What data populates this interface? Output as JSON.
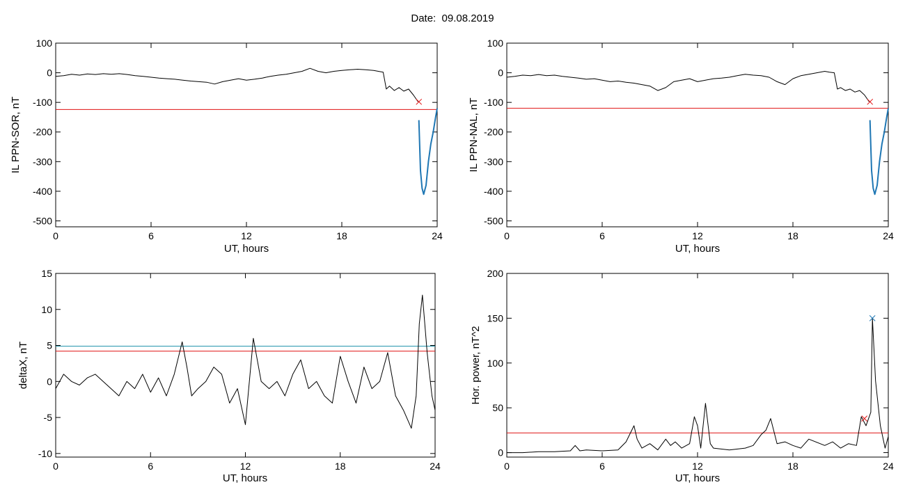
{
  "figure_title": "Date:  09.08.2019",
  "colors": {
    "trace": "#000000",
    "red_line": "#e01010",
    "blue_line": "#1f77b4",
    "cyan_line": "#1a8fa8"
  },
  "chart_data": [
    {
      "id": "sor",
      "type": "line",
      "title": "",
      "xlabel": "UT, hours",
      "ylabel": "IL PPN-SOR, nT",
      "xlim": [
        0,
        24
      ],
      "ylim": [
        -520,
        100
      ],
      "xticks": [
        "0",
        "6",
        "12",
        "18",
        "24"
      ],
      "yticks": [
        "100",
        "0",
        "-100",
        "-200",
        "-300",
        "-400",
        "-500"
      ],
      "hlines": [
        {
          "y": -124,
          "color": "red"
        }
      ],
      "markers": [
        {
          "x": 22.85,
          "y": -98,
          "symbol": "x",
          "color": "red"
        }
      ],
      "series": [
        {
          "color": "black",
          "x": [
            0,
            0.5,
            1,
            1.5,
            2,
            2.5,
            3,
            3.5,
            4,
            4.5,
            5,
            5.5,
            6,
            6.5,
            7,
            7.5,
            8,
            8.5,
            9,
            9.5,
            10,
            10.5,
            11,
            11.5,
            12,
            12.5,
            13,
            13.5,
            14,
            14.5,
            15,
            15.5,
            16,
            16.5,
            17,
            17.5,
            18,
            18.5,
            19,
            19.5,
            20,
            20.3,
            20.6,
            20.8,
            21,
            21.3,
            21.6,
            21.9,
            22.2,
            22.5,
            22.8
          ],
          "y": [
            -12,
            -10,
            -5,
            -8,
            -4,
            -6,
            -3,
            -5,
            -3,
            -6,
            -10,
            -12,
            -15,
            -18,
            -20,
            -22,
            -25,
            -28,
            -30,
            -32,
            -38,
            -30,
            -25,
            -20,
            -25,
            -22,
            -18,
            -12,
            -8,
            -5,
            0,
            5,
            15,
            5,
            0,
            5,
            8,
            10,
            12,
            10,
            8,
            5,
            2,
            -55,
            -45,
            -60,
            -50,
            -62,
            -55,
            -75,
            -98
          ]
        },
        {
          "color": "blue",
          "x": [
            22.85,
            22.95,
            23.05,
            23.15,
            23.3,
            23.45,
            23.6,
            23.75,
            23.9,
            24.0
          ],
          "y": [
            -160,
            -330,
            -390,
            -410,
            -380,
            -300,
            -240,
            -200,
            -150,
            -120
          ]
        }
      ]
    },
    {
      "id": "nal",
      "type": "line",
      "title": "",
      "xlabel": "UT, hours",
      "ylabel": "IL PPN-NAL, nT",
      "xlim": [
        0,
        24
      ],
      "ylim": [
        -520,
        100
      ],
      "xticks": [
        "0",
        "6",
        "12",
        "18",
        "24"
      ],
      "yticks": [
        "100",
        "0",
        "-100",
        "-200",
        "-300",
        "-400",
        "-500"
      ],
      "hlines": [
        {
          "y": -120,
          "color": "red"
        }
      ],
      "markers": [
        {
          "x": 22.85,
          "y": -98,
          "symbol": "x",
          "color": "red"
        }
      ],
      "series": [
        {
          "color": "black",
          "x": [
            0,
            0.5,
            1,
            1.5,
            2,
            2.5,
            3,
            3.5,
            4,
            4.5,
            5,
            5.5,
            6,
            6.5,
            7,
            7.5,
            8,
            8.5,
            9,
            9.5,
            10,
            10.5,
            11,
            11.5,
            12,
            12.5,
            13,
            13.5,
            14,
            14.5,
            15,
            15.5,
            16,
            16.5,
            17,
            17.5,
            18,
            18.5,
            19,
            19.5,
            20,
            20.3,
            20.6,
            20.8,
            21,
            21.3,
            21.6,
            21.9,
            22.2,
            22.5,
            22.8
          ],
          "y": [
            -15,
            -12,
            -8,
            -10,
            -6,
            -10,
            -8,
            -12,
            -15,
            -18,
            -22,
            -20,
            -25,
            -30,
            -28,
            -32,
            -35,
            -40,
            -45,
            -60,
            -50,
            -30,
            -25,
            -20,
            -30,
            -25,
            -20,
            -18,
            -15,
            -10,
            -5,
            -8,
            -10,
            -15,
            -30,
            -40,
            -20,
            -10,
            -5,
            0,
            5,
            2,
            0,
            -55,
            -50,
            -60,
            -55,
            -65,
            -60,
            -75,
            -98
          ]
        },
        {
          "color": "blue",
          "x": [
            22.85,
            22.95,
            23.05,
            23.15,
            23.3,
            23.45,
            23.6,
            23.75,
            23.9,
            24.0
          ],
          "y": [
            -160,
            -330,
            -390,
            -410,
            -380,
            -300,
            -240,
            -200,
            -150,
            -120
          ]
        }
      ]
    },
    {
      "id": "deltax",
      "type": "line",
      "title": "",
      "xlabel": "UT, hours",
      "ylabel": "deltaX, nT",
      "xlim": [
        0,
        24
      ],
      "ylim": [
        -10.5,
        15
      ],
      "xticks": [
        "0",
        "6",
        "12",
        "18",
        "24"
      ],
      "yticks": [
        "15",
        "10",
        "5",
        "0",
        "-5",
        "-10"
      ],
      "hlines": [
        {
          "y": 4.9,
          "color": "cyan"
        },
        {
          "y": 4.2,
          "color": "red"
        }
      ],
      "markers": [],
      "series": [
        {
          "color": "black",
          "x": [
            0,
            0.5,
            1,
            1.5,
            2,
            2.5,
            3,
            3.5,
            4,
            4.5,
            5,
            5.5,
            6,
            6.5,
            7,
            7.5,
            8,
            8.3,
            8.6,
            9,
            9.5,
            10,
            10.5,
            11,
            11.5,
            12,
            12.5,
            13,
            13.5,
            14,
            14.5,
            15,
            15.5,
            16,
            16.5,
            17,
            17.5,
            18,
            18.5,
            19,
            19.5,
            20,
            20.5,
            21,
            21.5,
            22,
            22.5,
            22.8,
            23.0,
            23.2,
            23.5,
            23.8,
            24.0
          ],
          "y": [
            -1,
            1,
            0,
            -0.5,
            0.5,
            1,
            0,
            -1,
            -2,
            0,
            -1,
            1,
            -1.5,
            0.5,
            -2,
            1,
            5.5,
            2,
            -2,
            -1,
            0,
            2,
            1,
            -3,
            -1,
            -6,
            6,
            0,
            -1,
            0,
            -2,
            1,
            3,
            -1,
            0,
            -2,
            -3,
            3.5,
            0,
            -3,
            2,
            -1,
            0,
            4,
            -2,
            -4,
            -6.5,
            -2,
            8,
            12,
            4,
            -2,
            -4
          ]
        }
      ]
    },
    {
      "id": "horpower",
      "type": "line",
      "title": "",
      "xlabel": "UT, hours",
      "ylabel": "Hor. power, nT^2",
      "xlim": [
        0,
        24
      ],
      "ylim": [
        -5,
        200
      ],
      "xticks": [
        "0",
        "6",
        "12",
        "18",
        "24"
      ],
      "yticks": [
        "200",
        "150",
        "100",
        "50",
        "0"
      ],
      "hlines": [
        {
          "y": 22,
          "color": "red"
        }
      ],
      "markers": [
        {
          "x": 23.0,
          "y": 150,
          "symbol": "x",
          "color": "blue"
        },
        {
          "x": 22.5,
          "y": 38,
          "symbol": "x",
          "color": "red"
        }
      ],
      "series": [
        {
          "color": "black",
          "x": [
            0,
            1,
            2,
            3,
            4,
            4.3,
            4.6,
            5,
            6,
            7,
            7.5,
            8,
            8.2,
            8.5,
            9,
            9.5,
            10,
            10.3,
            10.6,
            11,
            11.5,
            11.8,
            12,
            12.2,
            12.5,
            12.8,
            13,
            14,
            15,
            15.5,
            16,
            16.3,
            16.6,
            17,
            17.5,
            18,
            18.5,
            19,
            20,
            20.5,
            21,
            21.5,
            22,
            22.3,
            22.6,
            22.9,
            23.0,
            23.2,
            23.5,
            23.8,
            24.0
          ],
          "y": [
            0,
            0,
            1,
            1,
            2,
            8,
            2,
            3,
            2,
            3,
            12,
            30,
            15,
            5,
            10,
            3,
            15,
            8,
            12,
            5,
            10,
            40,
            30,
            5,
            55,
            10,
            5,
            3,
            5,
            8,
            20,
            25,
            38,
            10,
            12,
            8,
            5,
            15,
            8,
            12,
            5,
            10,
            8,
            40,
            30,
            45,
            150,
            80,
            30,
            5,
            18
          ]
        }
      ]
    }
  ]
}
